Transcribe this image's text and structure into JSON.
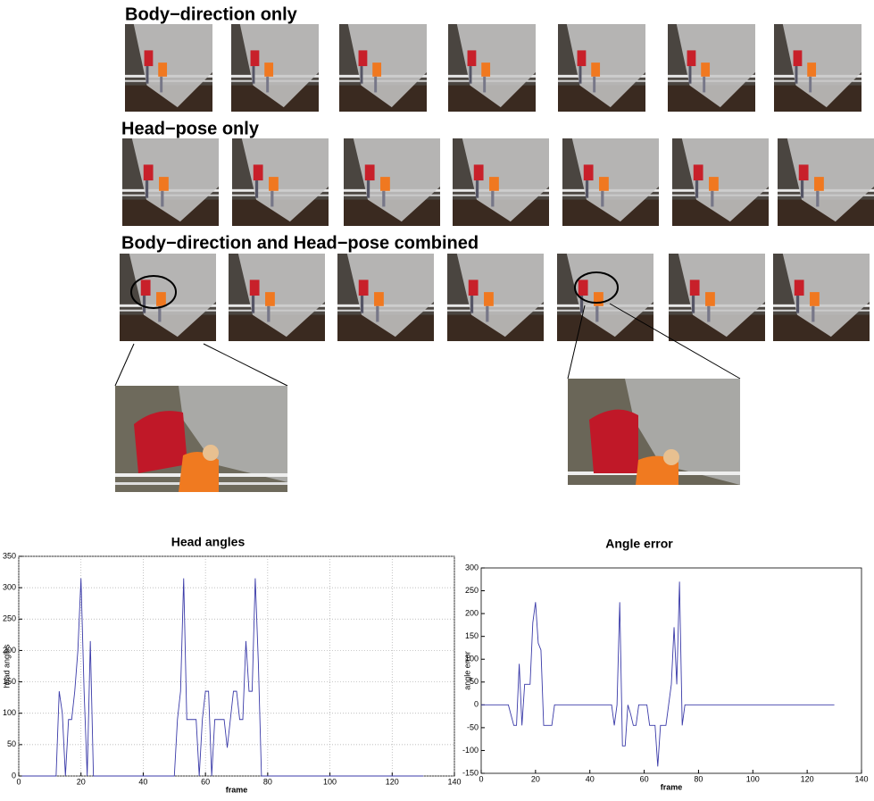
{
  "rows": [
    {
      "title": "Body−direction only"
    },
    {
      "title": "Head−pose only"
    },
    {
      "title": "Body−direction and Head−pose combined"
    }
  ],
  "chart_data": [
    {
      "type": "line",
      "title": "Head angles",
      "x_label": "frame",
      "y_label": "head angles",
      "x": [
        1,
        12,
        13,
        14,
        15,
        16,
        17,
        18,
        19,
        20,
        21,
        22,
        23,
        24,
        50,
        51,
        52,
        53,
        54,
        57,
        58,
        59,
        60,
        61,
        62,
        63,
        66,
        67,
        68,
        69,
        70,
        71,
        72,
        73,
        74,
        75,
        76,
        77,
        78,
        130
      ],
      "series": [
        {
          "name": "head angles",
          "color": "#3a3aa8",
          "values": [
            0,
            0,
            135,
            100,
            0,
            90,
            90,
            135,
            200,
            315,
            135,
            0,
            215,
            0,
            0,
            90,
            135,
            315,
            90,
            90,
            0,
            90,
            135,
            135,
            0,
            90,
            90,
            45,
            90,
            135,
            135,
            90,
            90,
            215,
            135,
            135,
            315,
            180,
            0,
            0
          ]
        }
      ],
      "xlim": [
        0,
        140
      ],
      "xticks": [
        0,
        20,
        40,
        60,
        80,
        100,
        120,
        140
      ],
      "ylim": [
        0,
        350
      ],
      "yticks": [
        0,
        50,
        100,
        150,
        200,
        250,
        300,
        350
      ],
      "grid": true
    },
    {
      "type": "line",
      "title": "Angle error",
      "x_label": "frame",
      "y_label": "angle error",
      "x": [
        0,
        10,
        12,
        13,
        14,
        15,
        16,
        18,
        19,
        20,
        21,
        22,
        23,
        26,
        27,
        48,
        49,
        50,
        51,
        52,
        53,
        54,
        55,
        56,
        57,
        58,
        61,
        62,
        64,
        65,
        66,
        68,
        69,
        70,
        71,
        72,
        73,
        74,
        75,
        130
      ],
      "series": [
        {
          "name": "angle error",
          "color": "#3a3aa8",
          "values": [
            0,
            0,
            -45,
            -45,
            90,
            -45,
            45,
            45,
            180,
            225,
            135,
            120,
            -45,
            -45,
            0,
            0,
            -45,
            0,
            225,
            -90,
            -90,
            0,
            -20,
            -45,
            -45,
            0,
            0,
            -45,
            -45,
            -135,
            -45,
            -45,
            0,
            45,
            170,
            45,
            270,
            -45,
            0,
            0
          ]
        }
      ],
      "xlim": [
        0,
        140
      ],
      "xticks": [
        0,
        20,
        40,
        60,
        80,
        100,
        120,
        140
      ],
      "ylim": [
        -150,
        300
      ],
      "yticks": [
        -150,
        -100,
        -50,
        0,
        50,
        100,
        150,
        200,
        250,
        300
      ],
      "grid": false
    }
  ]
}
